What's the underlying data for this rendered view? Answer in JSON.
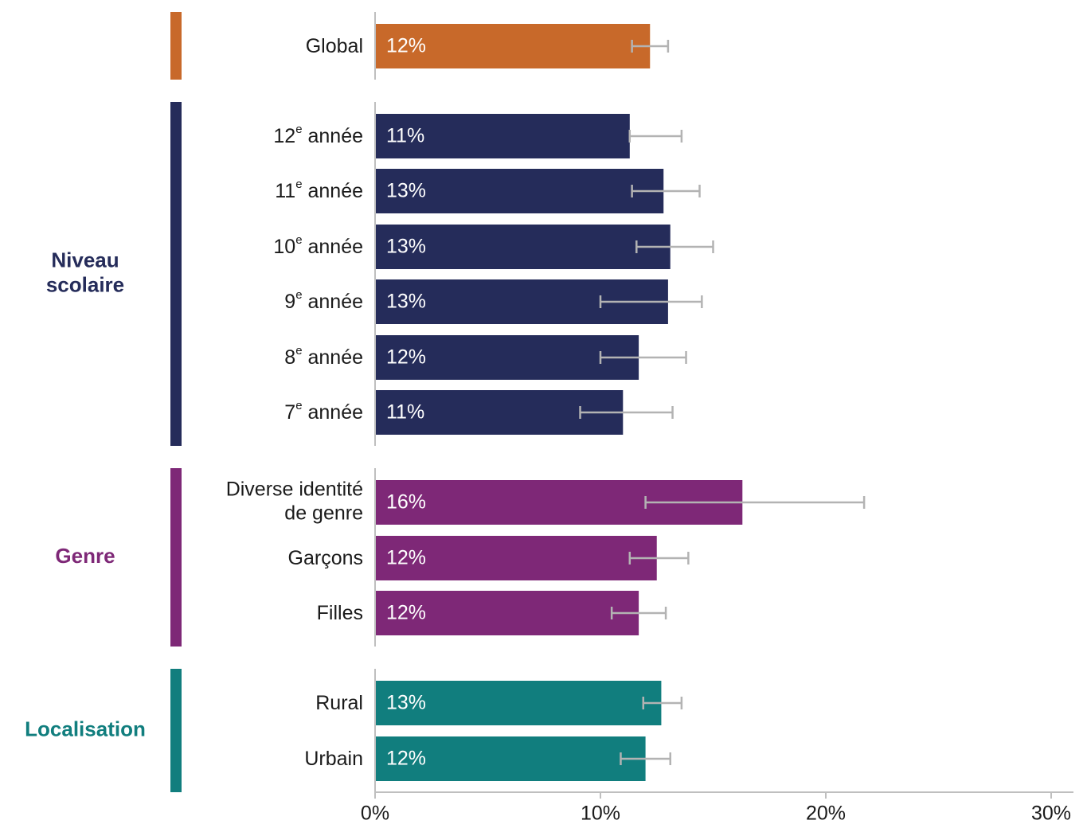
{
  "chart_data": {
    "type": "bar",
    "orientation": "horizontal",
    "title": "",
    "xlabel": "",
    "ylabel": "",
    "xlim": [
      0,
      30
    ],
    "x_ticks": [
      {
        "value": 0,
        "label": "0%"
      },
      {
        "value": 10,
        "label": "10%"
      },
      {
        "value": 20,
        "label": "20%"
      },
      {
        "value": 30,
        "label": "30%"
      }
    ],
    "grid": false,
    "legend": "none",
    "error_bar_color": "#b3b3b3",
    "groups": [
      {
        "key": "global",
        "label": "",
        "color": "#c8692a",
        "bars": [
          {
            "label": "Global",
            "value": 12.2,
            "value_label": "12%",
            "err_low": 11.4,
            "err_high": 13.0
          }
        ]
      },
      {
        "key": "niveau",
        "label": "Niveau scolaire",
        "label_lines": [
          "Niveau",
          "scolaire"
        ],
        "color": "#252c5a",
        "bars": [
          {
            "label": "12",
            "label_sup": "e",
            "label_suffix": " année",
            "value": 11.3,
            "value_label": "11%",
            "err_low": 11.3,
            "err_high": 13.6
          },
          {
            "label": "11",
            "label_sup": "e",
            "label_suffix": " année",
            "value": 12.8,
            "value_label": "13%",
            "err_low": 11.4,
            "err_high": 14.4
          },
          {
            "label": "10",
            "label_sup": "e",
            "label_suffix": " année",
            "value": 13.1,
            "value_label": "13%",
            "err_low": 11.6,
            "err_high": 15.0
          },
          {
            "label": "9",
            "label_sup": "e",
            "label_suffix": " année",
            "value": 13.0,
            "value_label": "13%",
            "err_low": 10.0,
            "err_high": 14.5
          },
          {
            "label": "8",
            "label_sup": "e",
            "label_suffix": " année",
            "value": 11.7,
            "value_label": "12%",
            "err_low": 10.0,
            "err_high": 13.8
          },
          {
            "label": "7",
            "label_sup": "e",
            "label_suffix": " année",
            "value": 11.0,
            "value_label": "11%",
            "err_low": 9.1,
            "err_high": 13.2
          }
        ]
      },
      {
        "key": "genre",
        "label": "Genre",
        "label_lines": [
          "Genre"
        ],
        "color": "#7e2877",
        "bars": [
          {
            "label": "Diverse identité de genre",
            "label_lines": [
              "Diverse identité",
              "de genre"
            ],
            "value": 16.3,
            "value_label": "16%",
            "err_low": 12.0,
            "err_high": 21.7
          },
          {
            "label": "Garçons",
            "value": 12.5,
            "value_label": "12%",
            "err_low": 11.3,
            "err_high": 13.9
          },
          {
            "label": "Filles",
            "value": 11.7,
            "value_label": "12%",
            "err_low": 10.5,
            "err_high": 12.9
          }
        ]
      },
      {
        "key": "localisation",
        "label": "Localisation",
        "label_lines": [
          "Localisation"
        ],
        "color": "#117e7e",
        "bars": [
          {
            "label": "Rural",
            "value": 12.7,
            "value_label": "13%",
            "err_low": 11.9,
            "err_high": 13.6
          },
          {
            "label": "Urbain",
            "value": 12.0,
            "value_label": "12%",
            "err_low": 10.9,
            "err_high": 13.1
          }
        ]
      }
    ]
  }
}
